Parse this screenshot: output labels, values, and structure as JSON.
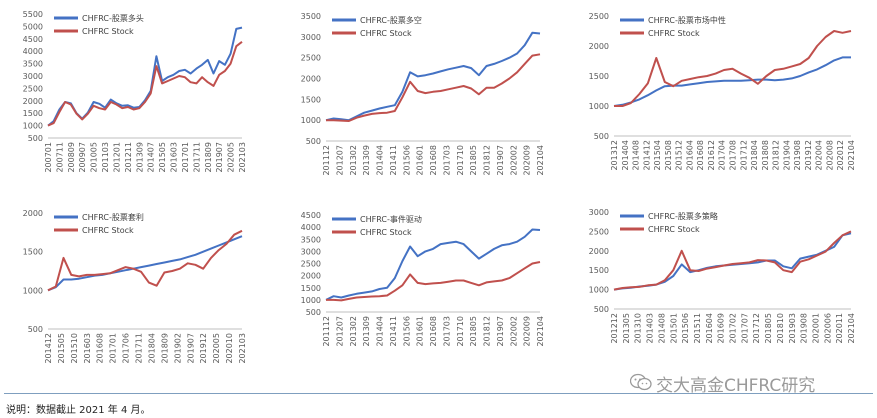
{
  "note": "说明：数据截止 2021 年 4 月。",
  "watermark": "交大高金CHFRC研究",
  "colors": {
    "blue": "#4472C4",
    "red": "#C0504D"
  },
  "chart_data": [
    {
      "type": "line",
      "series": [
        {
          "name": "CHFRC-股票多头",
          "values": [
            1000,
            1180,
            1650,
            1950,
            1900,
            1500,
            1280,
            1530,
            1950,
            1880,
            1720,
            2050,
            1900,
            1800,
            1820,
            1720,
            1750,
            2020,
            2400,
            3800,
            2800,
            2950,
            3050,
            3200,
            3250,
            3100,
            3300,
            3450,
            3650,
            3100,
            3600,
            3450,
            3900,
            4900,
            4950
          ]
        },
        {
          "name": "CHFRC Stock",
          "values": [
            1000,
            1100,
            1550,
            1950,
            1850,
            1480,
            1250,
            1480,
            1800,
            1700,
            1650,
            1950,
            1850,
            1700,
            1750,
            1650,
            1700,
            1950,
            2300,
            3400,
            2700,
            2800,
            2900,
            3000,
            2950,
            2750,
            2700,
            2950,
            2750,
            2600,
            3050,
            3200,
            3500,
            4200,
            4380
          ]
        }
      ],
      "x_ticks": [
        "200701",
        "200711",
        "200809",
        "200907",
        "201005",
        "201103",
        "201201",
        "201211",
        "201309",
        "201407",
        "201505",
        "201603",
        "201701",
        "201711",
        "201809",
        "201907",
        "202005",
        "202103"
      ],
      "y_ticks": [
        500,
        1000,
        1500,
        2000,
        2500,
        3000,
        3500,
        4000,
        4500,
        5000,
        5500
      ],
      "ylim": [
        500,
        5500
      ],
      "legend": "top-left"
    },
    {
      "type": "line",
      "series": [
        {
          "name": "CHFRC-股票多空",
          "values": [
            1000,
            1040,
            1020,
            1000,
            1090,
            1180,
            1230,
            1280,
            1320,
            1360,
            1680,
            2150,
            2050,
            2080,
            2120,
            2170,
            2220,
            2260,
            2300,
            2250,
            2080,
            2300,
            2350,
            2420,
            2500,
            2600,
            2800,
            3100,
            3080
          ]
        },
        {
          "name": "CHFRC Stock",
          "values": [
            1000,
            1000,
            990,
            980,
            1060,
            1110,
            1150,
            1170,
            1180,
            1220,
            1550,
            1920,
            1700,
            1650,
            1680,
            1700,
            1740,
            1780,
            1820,
            1760,
            1620,
            1780,
            1780,
            1880,
            2000,
            2150,
            2350,
            2550,
            2580
          ]
        }
      ],
      "x_ticks": [
        "201112",
        "201207",
        "201302",
        "201309",
        "201404",
        "201411",
        "201506",
        "201601",
        "201608",
        "201703",
        "201710",
        "201805",
        "201812",
        "201907",
        "202002",
        "202009",
        "202104"
      ],
      "y_ticks": [
        500,
        1000,
        1500,
        2000,
        2500,
        3000,
        3500
      ],
      "ylim": [
        500,
        3500
      ],
      "legend": "top-left"
    },
    {
      "type": "line",
      "series": [
        {
          "name": "CHFRC-股票市场中性",
          "values": [
            1000,
            1020,
            1060,
            1110,
            1180,
            1260,
            1330,
            1340,
            1340,
            1360,
            1380,
            1400,
            1410,
            1420,
            1420,
            1420,
            1430,
            1440,
            1440,
            1430,
            1440,
            1460,
            1500,
            1560,
            1610,
            1680,
            1760,
            1810,
            1810
          ]
        },
        {
          "name": "CHFRC Stock",
          "values": [
            1000,
            1000,
            1050,
            1200,
            1380,
            1800,
            1400,
            1330,
            1420,
            1450,
            1480,
            1500,
            1540,
            1600,
            1620,
            1540,
            1470,
            1370,
            1500,
            1600,
            1620,
            1660,
            1700,
            1800,
            2000,
            2150,
            2250,
            2220,
            2250
          ]
        }
      ],
      "x_ticks": [
        "201312",
        "201404",
        "201408",
        "201412",
        "201504",
        "201508",
        "201512",
        "201604",
        "201608",
        "201612",
        "201704",
        "201708",
        "201712",
        "201804",
        "201808",
        "201812",
        "201904",
        "201908",
        "201912",
        "202004",
        "202008",
        "202012",
        "202104"
      ],
      "y_ticks": [
        500,
        1000,
        1500,
        2000,
        2500
      ],
      "ylim": [
        500,
        2500
      ],
      "legend": "top-left"
    },
    {
      "type": "line",
      "series": [
        {
          "name": "CHFRC-股票套利",
          "values": [
            1000,
            1040,
            1140,
            1140,
            1150,
            1170,
            1190,
            1200,
            1220,
            1240,
            1260,
            1280,
            1300,
            1320,
            1340,
            1360,
            1380,
            1400,
            1430,
            1460,
            1500,
            1540,
            1580,
            1620,
            1660,
            1700
          ]
        },
        {
          "name": "CHFRC Stock",
          "values": [
            1000,
            1050,
            1420,
            1200,
            1180,
            1200,
            1200,
            1210,
            1220,
            1260,
            1300,
            1280,
            1240,
            1100,
            1060,
            1230,
            1250,
            1280,
            1350,
            1330,
            1280,
            1420,
            1520,
            1600,
            1720,
            1770
          ]
        }
      ],
      "x_ticks": [
        "201412",
        "201505",
        "201510",
        "201603",
        "201608",
        "201701",
        "201706",
        "201711",
        "201804",
        "201809",
        "201902",
        "201907",
        "201912",
        "202005",
        "202010",
        "202103"
      ],
      "y_ticks": [
        500,
        1000,
        1500,
        2000
      ],
      "ylim": [
        500,
        2000
      ],
      "legend": "top-left"
    },
    {
      "type": "line",
      "series": [
        {
          "name": "CHFRC-事件驱动",
          "values": [
            1000,
            1150,
            1100,
            1180,
            1250,
            1300,
            1350,
            1450,
            1500,
            1900,
            2600,
            3200,
            2800,
            3000,
            3100,
            3300,
            3350,
            3400,
            3300,
            3000,
            2700,
            2900,
            3100,
            3250,
            3300,
            3400,
            3600,
            3900,
            3880
          ]
        },
        {
          "name": "CHFRC Stock",
          "values": [
            1000,
            1000,
            980,
            1040,
            1100,
            1120,
            1140,
            1150,
            1180,
            1380,
            1600,
            2050,
            1700,
            1650,
            1680,
            1700,
            1750,
            1800,
            1800,
            1700,
            1600,
            1720,
            1760,
            1800,
            1900,
            2100,
            2300,
            2500,
            2560
          ]
        }
      ],
      "x_ticks": [
        "201112",
        "201207",
        "201302",
        "201309",
        "201404",
        "201411",
        "201506",
        "201601",
        "201608",
        "201703",
        "201710",
        "201805",
        "201812",
        "201907",
        "202002",
        "202009",
        "202104"
      ],
      "y_ticks": [
        500,
        1000,
        1500,
        2000,
        2500,
        3000,
        3500,
        4000,
        4500
      ],
      "ylim": [
        500,
        4500
      ],
      "legend": "top-left"
    },
    {
      "type": "line",
      "series": [
        {
          "name": "CHFRC-股票多策略",
          "values": [
            1000,
            1030,
            1050,
            1080,
            1100,
            1130,
            1200,
            1350,
            1650,
            1450,
            1500,
            1560,
            1600,
            1620,
            1640,
            1660,
            1680,
            1700,
            1750,
            1750,
            1600,
            1550,
            1800,
            1850,
            1900,
            2000,
            2100,
            2400,
            2450
          ]
        },
        {
          "name": "CHFRC Stock",
          "values": [
            1000,
            1040,
            1060,
            1070,
            1110,
            1130,
            1240,
            1500,
            2000,
            1500,
            1480,
            1540,
            1580,
            1620,
            1660,
            1680,
            1700,
            1760,
            1750,
            1700,
            1500,
            1450,
            1720,
            1780,
            1880,
            1980,
            2200,
            2400,
            2500
          ]
        }
      ],
      "x_ticks": [
        "201212",
        "201305",
        "201310",
        "201403",
        "201408",
        "201501",
        "201506",
        "201511",
        "201604",
        "201609",
        "201702",
        "201707",
        "201712",
        "201805",
        "201810",
        "201903",
        "201908",
        "202001",
        "202006",
        "202011",
        "202104"
      ],
      "y_ticks": [
        500,
        1000,
        1500,
        2000,
        2500,
        3000
      ],
      "ylim": [
        500,
        3000
      ],
      "legend": "top-left"
    }
  ]
}
